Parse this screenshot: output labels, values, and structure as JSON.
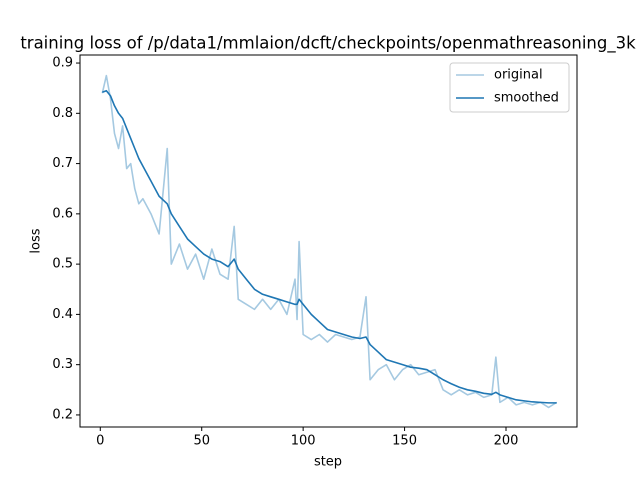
{
  "chart_data": {
    "type": "line",
    "title": "training loss of /p/data1/mmlaion/dcft/checkpoints/openmathreasoning_3k",
    "x_label": "step",
    "y_label": "loss",
    "x": [
      1,
      3,
      5,
      7,
      9,
      11,
      13,
      15,
      17,
      19,
      21,
      25,
      29,
      33,
      35,
      39,
      43,
      47,
      51,
      55,
      59,
      63,
      66,
      68,
      72,
      76,
      80,
      84,
      88,
      92,
      96,
      97,
      98,
      100,
      104,
      108,
      112,
      116,
      120,
      124,
      128,
      131,
      133,
      137,
      141,
      145,
      149,
      153,
      157,
      161,
      165,
      169,
      173,
      177,
      181,
      185,
      189,
      193,
      195,
      197,
      201,
      205,
      209,
      213,
      217,
      221,
      225
    ],
    "series": [
      {
        "name": "original",
        "color": "#1f77b4",
        "alpha": 0.4,
        "values": [
          0.84,
          0.875,
          0.83,
          0.76,
          0.73,
          0.775,
          0.69,
          0.7,
          0.65,
          0.62,
          0.63,
          0.6,
          0.56,
          0.73,
          0.5,
          0.54,
          0.49,
          0.52,
          0.47,
          0.53,
          0.48,
          0.47,
          0.575,
          0.43,
          0.42,
          0.41,
          0.43,
          0.41,
          0.43,
          0.4,
          0.47,
          0.39,
          0.545,
          0.36,
          0.35,
          0.36,
          0.345,
          0.36,
          0.355,
          0.35,
          0.355,
          0.435,
          0.27,
          0.29,
          0.3,
          0.27,
          0.29,
          0.3,
          0.28,
          0.285,
          0.29,
          0.25,
          0.24,
          0.25,
          0.24,
          0.245,
          0.235,
          0.24,
          0.315,
          0.225,
          0.235,
          0.22,
          0.225,
          0.22,
          0.225,
          0.215,
          0.225
        ]
      },
      {
        "name": "smoothed",
        "color": "#1f77b4",
        "alpha": 1,
        "values": [
          0.842,
          0.845,
          0.835,
          0.815,
          0.8,
          0.79,
          0.77,
          0.75,
          0.73,
          0.71,
          0.695,
          0.665,
          0.635,
          0.62,
          0.6,
          0.575,
          0.55,
          0.535,
          0.52,
          0.51,
          0.505,
          0.495,
          0.51,
          0.49,
          0.47,
          0.45,
          0.44,
          0.435,
          0.43,
          0.425,
          0.42,
          0.42,
          0.43,
          0.42,
          0.4,
          0.385,
          0.37,
          0.365,
          0.36,
          0.355,
          0.352,
          0.355,
          0.34,
          0.325,
          0.31,
          0.305,
          0.3,
          0.295,
          0.293,
          0.29,
          0.28,
          0.27,
          0.262,
          0.255,
          0.25,
          0.247,
          0.243,
          0.241,
          0.245,
          0.24,
          0.235,
          0.23,
          0.228,
          0.226,
          0.225,
          0.224,
          0.224
        ]
      }
    ],
    "xlim": [
      -10,
      235
    ],
    "ylim": [
      0.176,
      0.916
    ],
    "xticks": [
      0,
      50,
      100,
      150,
      200
    ],
    "yticks": [
      0.2,
      0.3,
      0.4,
      0.5,
      0.6,
      0.7,
      0.8,
      0.9
    ],
    "legend": "upper right",
    "grid": false
  }
}
